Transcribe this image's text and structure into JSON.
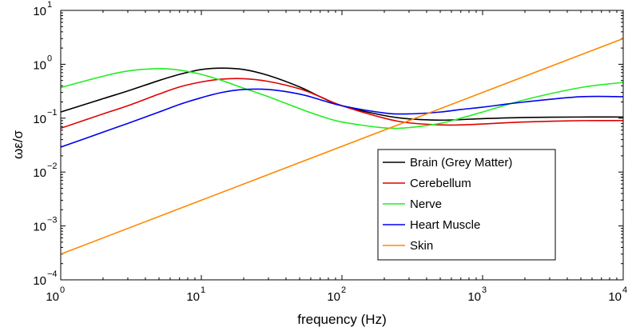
{
  "chart_data": {
    "type": "line",
    "title": "",
    "xlabel": "frequency (Hz)",
    "ylabel": "ωε/σ",
    "xscale": "log",
    "yscale": "log",
    "xlim": [
      1,
      10000
    ],
    "ylim": [
      0.0001,
      10
    ],
    "grid": false,
    "legend_position": "lower-right",
    "x_ticks": [
      {
        "value": 1,
        "base": "10",
        "exp": "0"
      },
      {
        "value": 10,
        "base": "10",
        "exp": "1"
      },
      {
        "value": 100,
        "base": "10",
        "exp": "2"
      },
      {
        "value": 1000,
        "base": "10",
        "exp": "3"
      },
      {
        "value": 10000,
        "base": "10",
        "exp": "4"
      }
    ],
    "y_ticks": [
      {
        "value": 0.0001,
        "base": "10",
        "exp": "−4"
      },
      {
        "value": 0.001,
        "base": "10",
        "exp": "−3"
      },
      {
        "value": 0.01,
        "base": "10",
        "exp": "−2"
      },
      {
        "value": 0.1,
        "base": "10",
        "exp": "−1"
      },
      {
        "value": 1,
        "base": "10",
        "exp": "0"
      },
      {
        "value": 10,
        "base": "10",
        "exp": "1"
      }
    ],
    "series": [
      {
        "name": "Brain (Grey Matter)",
        "color": "#000000",
        "x": [
          1,
          2,
          3,
          5,
          7,
          10,
          14,
          20,
          30,
          50,
          70,
          100,
          200,
          300,
          500,
          700,
          1000,
          2000,
          5000,
          10000
        ],
        "y": [
          0.13,
          0.23,
          0.32,
          0.5,
          0.65,
          0.8,
          0.85,
          0.8,
          0.62,
          0.38,
          0.25,
          0.17,
          0.112,
          0.097,
          0.092,
          0.094,
          0.098,
          0.103,
          0.105,
          0.105
        ]
      },
      {
        "name": "Cerebellum",
        "color": "#e00000",
        "x": [
          1,
          2,
          3,
          5,
          7,
          10,
          14,
          20,
          30,
          50,
          70,
          100,
          200,
          300,
          500,
          700,
          1000,
          2000,
          5000,
          10000
        ],
        "y": [
          0.065,
          0.12,
          0.17,
          0.28,
          0.38,
          0.47,
          0.53,
          0.54,
          0.48,
          0.35,
          0.25,
          0.17,
          0.1,
          0.082,
          0.075,
          0.075,
          0.078,
          0.085,
          0.09,
          0.09
        ]
      },
      {
        "name": "Nerve",
        "color": "#22ee22",
        "x": [
          1,
          2,
          3,
          5,
          7,
          10,
          14,
          20,
          30,
          50,
          70,
          100,
          200,
          300,
          500,
          700,
          1000,
          2000,
          5000,
          10000
        ],
        "y": [
          0.37,
          0.6,
          0.75,
          0.83,
          0.78,
          0.65,
          0.5,
          0.36,
          0.25,
          0.15,
          0.11,
          0.085,
          0.066,
          0.067,
          0.08,
          0.1,
          0.13,
          0.22,
          0.37,
          0.46
        ]
      },
      {
        "name": "Heart Muscle",
        "color": "#0000ee",
        "x": [
          1,
          2,
          3,
          5,
          7,
          10,
          14,
          20,
          30,
          50,
          70,
          100,
          200,
          300,
          500,
          700,
          1000,
          2000,
          5000,
          10000
        ],
        "y": [
          0.029,
          0.055,
          0.08,
          0.13,
          0.18,
          0.24,
          0.3,
          0.34,
          0.34,
          0.28,
          0.22,
          0.17,
          0.125,
          0.12,
          0.13,
          0.145,
          0.16,
          0.2,
          0.25,
          0.25
        ]
      },
      {
        "name": "Skin",
        "color": "#ff8800",
        "x": [
          1,
          10000
        ],
        "y": [
          0.0003,
          3.0
        ]
      }
    ]
  }
}
